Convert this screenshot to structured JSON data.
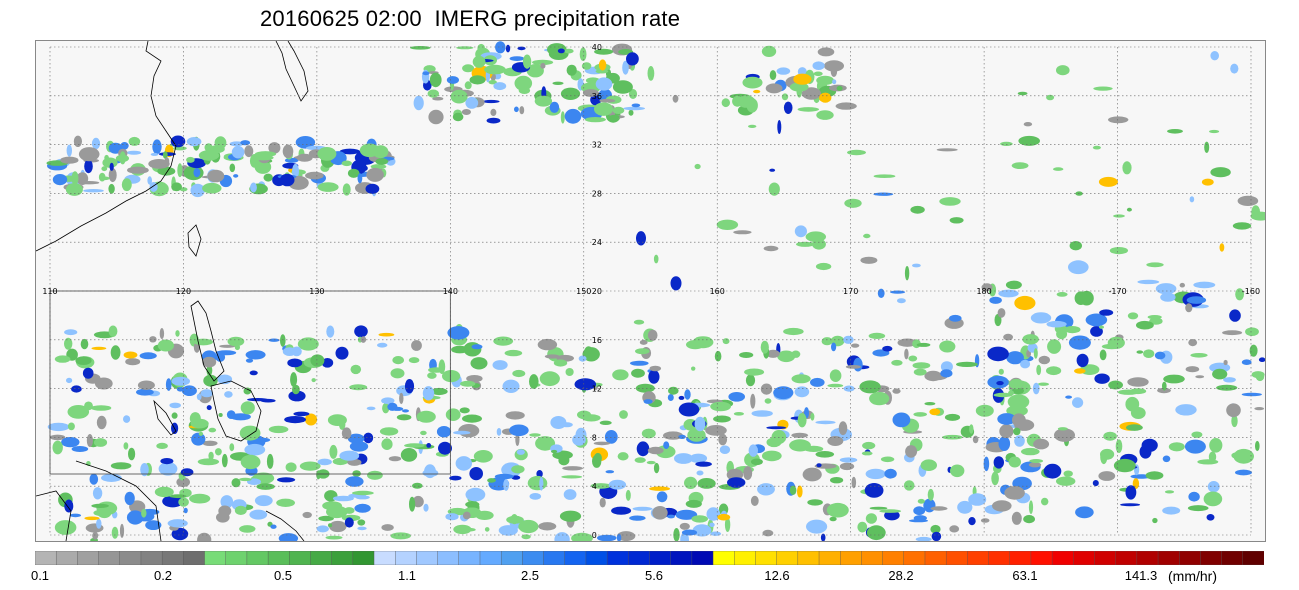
{
  "title": "20160625 02:00  IMERG precipitation rate",
  "map": {
    "lat_labels": [
      "40",
      "36",
      "32",
      "28",
      "24",
      "20",
      "16",
      "12",
      "8",
      "4",
      "0"
    ],
    "lon_labels": [
      "110",
      "120",
      "130",
      "140",
      "150",
      "160",
      "170",
      "180",
      "-170",
      "-160"
    ],
    "lat_range": [
      0,
      40
    ],
    "lon_range": [
      110,
      200
    ],
    "gridlines": true,
    "inset_box_lon": [
      110,
      140
    ],
    "inset_box_lat": [
      5,
      20
    ]
  },
  "colorbar": {
    "units": "(mm/hr)",
    "tick_labels": [
      "0.1",
      "0.2",
      "0.5",
      "1.1",
      "2.5",
      "5.6",
      "12.6",
      "28.2",
      "63.1",
      "141.3"
    ],
    "colors": [
      "#b4b4b4",
      "#aaaaaa",
      "#a0a0a0",
      "#969696",
      "#8c8c8c",
      "#828282",
      "#787878",
      "#6e6e6e",
      "#78dc78",
      "#6ed26e",
      "#64c864",
      "#5abe5a",
      "#50b450",
      "#46aa46",
      "#3ca03c",
      "#329632",
      "#c8dcff",
      "#b4d2ff",
      "#a0c8ff",
      "#8cbeff",
      "#78b4ff",
      "#64aaff",
      "#50a0f0",
      "#3c8cf0",
      "#2878f0",
      "#1464f0",
      "#0050e6",
      "#0032dc",
      "#0028d2",
      "#001ec8",
      "#0014be",
      "#000ab4",
      "#ffff00",
      "#fff000",
      "#ffe000",
      "#ffd000",
      "#ffc000",
      "#ffb000",
      "#ffa000",
      "#ff9000",
      "#ff8000",
      "#ff7000",
      "#ff6000",
      "#ff5000",
      "#ff4000",
      "#ff3000",
      "#ff2000",
      "#ff1000",
      "#f00000",
      "#e00000",
      "#d00000",
      "#c00000",
      "#b00000",
      "#a00000",
      "#900000",
      "#800000",
      "#700000",
      "#600000"
    ]
  }
}
